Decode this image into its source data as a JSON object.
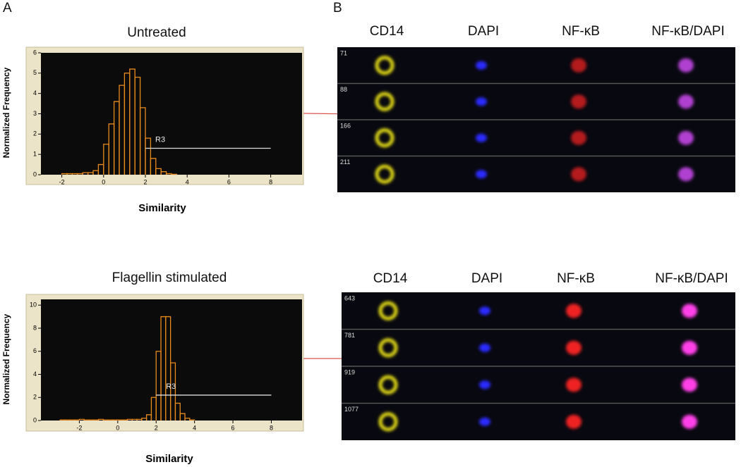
{
  "panel_labels": [
    "A",
    "B"
  ],
  "chart_data": [
    {
      "type": "histogram",
      "title": "Untreated",
      "x_label": "Similarity",
      "y_label": "Normalized Frequency",
      "bins": [
        -2,
        -1.75,
        -1.5,
        -1.25,
        -1,
        -0.75,
        -0.5,
        -0.25,
        0,
        0.25,
        0.5,
        0.75,
        1,
        1.25,
        1.5,
        1.75,
        2,
        2.25,
        2.5,
        2.75,
        3,
        3.25,
        3.5
      ],
      "counts": [
        0.05,
        0.05,
        0.05,
        0.05,
        0.1,
        0.1,
        0.2,
        0.5,
        1.5,
        2.5,
        3.6,
        4.4,
        5.0,
        5.2,
        4.8,
        3.3,
        1.8,
        0.8,
        0.3,
        0.15,
        0.05,
        0.02
      ],
      "color": "#e8891c",
      "xlim": [
        -3,
        9.5
      ],
      "ylim": [
        0,
        6
      ],
      "xticks": [
        -2,
        0,
        2,
        4,
        6,
        8
      ],
      "yticks": [
        0,
        1,
        2,
        3,
        4,
        5,
        6
      ],
      "gate": {
        "label": "R3",
        "x": [
          2,
          8
        ],
        "y": 1.3
      }
    },
    {
      "type": "histogram",
      "title": "Flagellin stimulated",
      "x_label": "Similarity",
      "y_label": "Normalized Frequency",
      "bins": [
        -3,
        -2.75,
        -2.5,
        -2.25,
        -2,
        -1.75,
        -1.5,
        -1.25,
        -1,
        -0.75,
        -0.5,
        -0.25,
        0,
        0.25,
        0.5,
        0.75,
        1,
        1.25,
        1.5,
        1.75,
        2,
        2.25,
        2.5,
        2.75,
        3,
        3.25,
        3.5,
        3.75,
        4
      ],
      "counts": [
        0.05,
        0.05,
        0.05,
        0.05,
        0.1,
        0.05,
        0.05,
        0.05,
        0.1,
        0.05,
        0.05,
        0.05,
        0.05,
        0.05,
        0.1,
        0.1,
        0.1,
        0.2,
        0.5,
        2,
        6,
        9,
        9,
        5,
        1.5,
        0.6,
        0.2,
        0.05
      ],
      "color": "#e8891c",
      "xlim": [
        -4,
        9.6
      ],
      "ylim": [
        0,
        10.5
      ],
      "xticks": [
        -2,
        0,
        2,
        4,
        6,
        8
      ],
      "yticks": [
        0,
        2,
        4,
        6,
        8,
        10
      ],
      "gate": {
        "label": "R3",
        "x": [
          2,
          8
        ],
        "y": 2.2
      }
    }
  ],
  "image_panels": [
    {
      "columns": [
        "CD14",
        "DAPI",
        "NF-κB",
        "NF-κB/DAPI"
      ],
      "rows": [
        "71",
        "88",
        "166",
        "211"
      ]
    },
    {
      "columns": [
        "CD14",
        "DAPI",
        "NF-κB",
        "NF-κB/DAPI"
      ],
      "rows": [
        "643",
        "781",
        "919",
        "1077"
      ]
    }
  ]
}
